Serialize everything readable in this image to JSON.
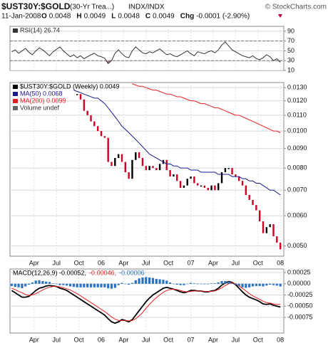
{
  "header": {
    "symbol": "$UST30Y:$GOLD",
    "name": "(30-Yr Trea...)",
    "exchange": "INDX/INDX",
    "credit": "© StockCharts.com",
    "date": "11-Jan-2008",
    "quote": [
      {
        "label": "O",
        "value": "0.0048"
      },
      {
        "label": "H",
        "value": "0.0049"
      },
      {
        "label": "L",
        "value": "0.0048"
      },
      {
        "label": "C",
        "value": "0.0049"
      },
      {
        "label": "Chg",
        "value": "-0.0001 (-2.90%)"
      }
    ]
  },
  "chart_data": [
    {
      "type": "line",
      "xlim": [
        -0.5,
        79
      ],
      "xticks": [
        6.5,
        13,
        19.5,
        26,
        32.5,
        39,
        45.5,
        52,
        58.5,
        65,
        71.5,
        78
      ],
      "ylim": [
        10,
        100
      ],
      "yticks": [
        90,
        70,
        50,
        30,
        10
      ],
      "ref_lines": [
        70,
        30
      ],
      "grid": true,
      "series": [
        {
          "name": "RSI(14) 26.74",
          "color": "#333333",
          "kind": "line",
          "shade_below": 30,
          "shade_color": "#a87c7c",
          "values": [
            48,
            52,
            45,
            50,
            55,
            47,
            42,
            50,
            56,
            52,
            46,
            40,
            48,
            53,
            58,
            50,
            44,
            38,
            42,
            36,
            40,
            34,
            38,
            42,
            45,
            40,
            38,
            35,
            24,
            30,
            45,
            52,
            44,
            38,
            36,
            50,
            58,
            52,
            46,
            44,
            48,
            46,
            50,
            54,
            48,
            42,
            44,
            40,
            38,
            42,
            46,
            50,
            44,
            40,
            48,
            46,
            44,
            48,
            50,
            46,
            52,
            62,
            68,
            60,
            52,
            48,
            44,
            40,
            38,
            36,
            40,
            34,
            32,
            36,
            42,
            38,
            30,
            34,
            26.74
          ]
        }
      ]
    },
    {
      "type": "line",
      "log": true,
      "grid": true,
      "xlim": [
        -0.5,
        79
      ],
      "xticks": [
        {
          "value": 6.5,
          "label": "Apr"
        },
        {
          "value": 13,
          "label": "Jul"
        },
        {
          "value": 19.5,
          "label": "Oct"
        },
        {
          "value": 26,
          "label": "06"
        },
        {
          "value": 32.5,
          "label": "Apr"
        },
        {
          "value": 39,
          "label": "Jul"
        },
        {
          "value": 45.5,
          "label": "Oct"
        },
        {
          "value": 52,
          "label": "07"
        },
        {
          "value": 58.5,
          "label": "Apr"
        },
        {
          "value": 65,
          "label": "Jul"
        },
        {
          "value": 71.5,
          "label": "Oct"
        },
        {
          "value": 78,
          "label": "08"
        }
      ],
      "ylim": [
        0.0047,
        0.0134
      ],
      "yticks": [
        {
          "value": 0.013,
          "label": "0.0130"
        },
        {
          "value": 0.012,
          "label": "0.0120"
        },
        {
          "value": 0.011,
          "label": "0.0110"
        },
        {
          "value": 0.01,
          "label": "0.0100"
        },
        {
          "value": 0.009,
          "label": "0.0090"
        },
        {
          "value": 0.008,
          "label": "0.0080"
        },
        {
          "value": 0.007,
          "label": "0.0070"
        },
        {
          "value": 0.006,
          "label": "0.0060"
        },
        {
          "value": 0.005,
          "label": "0.0050"
        }
      ],
      "series": [
        {
          "name": "$UST30Y:$GOLD (Weekly) 0.0049",
          "color": "#000000",
          "down_color": "#cc0022",
          "kind": "bars",
          "values": [
            null,
            null,
            null,
            null,
            null,
            null,
            null,
            null,
            null,
            null,
            null,
            null,
            null,
            null,
            null,
            null,
            null,
            null,
            null,
            0.0125,
            0.0121,
            0.0113,
            0.011,
            0.0106,
            0.0103,
            0.01,
            0.0097,
            0.0096,
            0.0083,
            0.0081,
            0.0085,
            0.0087,
            0.0083,
            0.0078,
            0.0075,
            0.0084,
            0.0088,
            0.0085,
            0.0081,
            0.0079,
            0.0081,
            0.008,
            0.0079,
            0.0082,
            0.0084,
            0.0079,
            0.0076,
            0.0077,
            0.0074,
            0.0071,
            0.0072,
            0.0075,
            0.0076,
            0.0073,
            0.0072,
            0.0072,
            0.0071,
            0.007,
            0.0072,
            0.007,
            0.0073,
            0.0078,
            0.008,
            0.008,
            0.0077,
            0.0076,
            0.0074,
            0.0072,
            0.0068,
            0.0066,
            0.0064,
            0.0062,
            0.0058,
            0.0054,
            0.0056,
            0.0057,
            0.0053,
            0.0051,
            0.0049
          ]
        },
        {
          "name": "MA(50) 0.0068",
          "color": "#1a1a8c",
          "kind": "line",
          "values": [
            null,
            null,
            null,
            null,
            null,
            null,
            null,
            null,
            null,
            null,
            null,
            null,
            null,
            null,
            null,
            null,
            null,
            null,
            0.0128,
            0.0127,
            0.0126,
            0.0125,
            0.0124,
            0.0123,
            0.0122,
            0.0122,
            0.012,
            0.0118,
            0.0115,
            0.0112,
            0.0109,
            0.0106,
            0.0103,
            0.0101,
            0.0099,
            0.0097,
            0.0095,
            0.0093,
            0.0091,
            0.0089,
            0.0087,
            0.0086,
            0.0085,
            0.0084,
            0.0083,
            0.0082,
            0.0082,
            0.0081,
            0.0081,
            0.008,
            0.008,
            0.008,
            0.0079,
            0.0079,
            0.0079,
            0.0078,
            0.0078,
            0.0078,
            0.0078,
            0.0078,
            0.0077,
            0.0077,
            0.0077,
            0.0077,
            0.0076,
            0.0076,
            0.0076,
            0.0075,
            0.0075,
            0.0074,
            0.0074,
            0.0073,
            0.0073,
            0.0072,
            0.0071,
            0.007,
            0.007,
            0.0069,
            0.0068
          ]
        },
        {
          "name": "MA(200) 0.0099",
          "color": "#e02020",
          "kind": "line",
          "values": [
            null,
            null,
            null,
            null,
            null,
            null,
            null,
            null,
            null,
            null,
            null,
            null,
            null,
            null,
            null,
            null,
            null,
            null,
            null,
            null,
            null,
            null,
            null,
            null,
            null,
            null,
            null,
            null,
            null,
            null,
            null,
            null,
            null,
            null,
            null,
            0.0133,
            0.0132,
            0.0131,
            0.0131,
            0.013,
            0.0129,
            0.0128,
            0.0128,
            0.0127,
            0.0126,
            0.0125,
            0.0125,
            0.0124,
            0.0123,
            0.0123,
            0.0122,
            0.0121,
            0.012,
            0.012,
            0.0119,
            0.0118,
            0.0118,
            0.0117,
            0.0116,
            0.0115,
            0.0115,
            0.0114,
            0.0113,
            0.0112,
            0.0111,
            0.011,
            0.011,
            0.0109,
            0.0108,
            0.0107,
            0.0106,
            0.0105,
            0.0104,
            0.0103,
            0.0102,
            0.0101,
            0.01,
            0.01,
            0.0099
          ]
        }
      ],
      "annotations": [
        "Volume undef"
      ]
    },
    {
      "type": "line",
      "grid": true,
      "legend_inline": true,
      "xlim": [
        -0.5,
        79
      ],
      "xticks": [
        {
          "value": 6.5,
          "label": "Apr"
        },
        {
          "value": 13,
          "label": "Jul"
        },
        {
          "value": 19.5,
          "label": "Oct"
        },
        {
          "value": 26,
          "label": "06"
        },
        {
          "value": 32.5,
          "label": "Apr"
        },
        {
          "value": 39,
          "label": "Jul"
        },
        {
          "value": 45.5,
          "label": "Oct"
        },
        {
          "value": 52,
          "label": "07"
        },
        {
          "value": 58.5,
          "label": "Apr"
        },
        {
          "value": 65,
          "label": "Jul"
        },
        {
          "value": 71.5,
          "label": "Oct"
        },
        {
          "value": 78,
          "label": "08"
        }
      ],
      "ylim": [
        -0.0011,
        0.00033
      ],
      "yticks": [
        {
          "value": 0.00025,
          "label": "0.00025"
        },
        {
          "value": 0,
          "label": "0.00000"
        },
        {
          "value": -0.00025,
          "label": "-0.00025"
        },
        {
          "value": -0.0005,
          "label": "-0.00050"
        },
        {
          "value": -0.00075,
          "label": "-0.00075"
        }
      ],
      "series": [
        {
          "name": "MACD(12,26,9) -0.00052,",
          "color": "#000000",
          "kind": "line",
          "width": 1.8,
          "values": [
            -0.00015,
            -0.0002,
            -0.00025,
            -0.0003,
            -0.0003,
            -0.00028,
            -0.00022,
            -0.00015,
            -0.0001,
            -8e-05,
            -5e-05,
            -4e-05,
            -5e-05,
            -6e-05,
            -0.0001,
            -0.00012,
            -0.00015,
            -0.0002,
            -0.00025,
            -0.0003,
            -0.00035,
            -0.0004,
            -0.00045,
            -0.0005,
            -0.00055,
            -0.0006,
            -0.00065,
            -0.0007,
            -0.00078,
            -0.00085,
            -0.00088,
            -0.00085,
            -0.0008,
            -0.00082,
            -0.00085,
            -0.0008,
            -0.0007,
            -0.0006,
            -0.0005,
            -0.0004,
            -0.00032,
            -0.00025,
            -0.0002,
            -0.00015,
            -0.0001,
            -8e-05,
            -0.0001,
            -0.00012,
            -0.00015,
            -0.00018,
            -0.0002,
            -0.00018,
            -0.00015,
            -0.00015,
            -0.00016,
            -0.00016,
            -0.00018,
            -0.00018,
            -0.00016,
            -0.00015,
            -0.0001,
            -3e-05,
            2e-05,
            5e-05,
            3e-05,
            -2e-05,
            -0.0001,
            -0.00018,
            -0.00025,
            -0.0003,
            -0.00033,
            -0.00036,
            -0.0004,
            -0.00045,
            -0.00046,
            -0.00045,
            -0.00048,
            -0.0005,
            -0.00052
          ]
        },
        {
          "name": "-0.00046,",
          "color": "#e02020",
          "kind": "line",
          "width": 1,
          "values": [
            -0.0001,
            -0.00013,
            -0.00017,
            -0.0002,
            -0.00024,
            -0.00026,
            -0.00025,
            -0.00022,
            -0.00018,
            -0.00014,
            -0.0001,
            -8e-05,
            -6e-05,
            -6e-05,
            -7e-05,
            -9e-05,
            -0.00011,
            -0.00014,
            -0.00018,
            -0.00022,
            -0.00027,
            -0.00032,
            -0.00037,
            -0.00042,
            -0.00047,
            -0.00052,
            -0.00057,
            -0.00062,
            -0.00068,
            -0.00074,
            -0.00079,
            -0.00082,
            -0.00082,
            -0.00082,
            -0.00083,
            -0.00082,
            -0.00078,
            -0.00072,
            -0.00064,
            -0.00055,
            -0.00046,
            -0.00038,
            -0.00031,
            -0.00025,
            -0.00019,
            -0.00015,
            -0.00013,
            -0.00012,
            -0.00013,
            -0.00015,
            -0.00017,
            -0.00018,
            -0.00017,
            -0.00016,
            -0.00016,
            -0.00016,
            -0.00017,
            -0.00017,
            -0.00017,
            -0.00016,
            -0.00013,
            -9e-05,
            -4e-05,
            0,
            2e-05,
            0,
            -5e-05,
            -0.0001,
            -0.00016,
            -0.00022,
            -0.00027,
            -0.00031,
            -0.00035,
            -0.00039,
            -0.00042,
            -0.00043,
            -0.00045,
            -0.00046,
            -0.00046
          ]
        },
        {
          "name": "-0.00006",
          "color": "#2a73c4",
          "kind": "histogram",
          "values": [
            -5e-05,
            -7e-05,
            -8e-05,
            -0.0001,
            -6e-05,
            -2e-05,
            3e-05,
            7e-05,
            8e-05,
            6e-05,
            5e-05,
            4e-05,
            1e-05,
            0,
            -3e-05,
            -3e-05,
            -4e-05,
            -6e-05,
            -7e-05,
            -8e-05,
            -8e-05,
            -8e-05,
            -8e-05,
            -8e-05,
            -8e-05,
            -8e-05,
            -8e-05,
            -8e-05,
            -0.0001,
            -0.00011,
            -9e-05,
            -3e-05,
            2e-05,
            0,
            -2e-05,
            2e-05,
            8e-05,
            0.00012,
            0.00014,
            0.00015,
            0.00014,
            0.00013,
            0.00011,
            0.0001,
            9e-05,
            7e-05,
            3e-05,
            0,
            -2e-05,
            -3e-05,
            -3e-05,
            0,
            2e-05,
            1e-05,
            0,
            0,
            -1e-05,
            -1e-05,
            1e-05,
            1e-05,
            3e-05,
            6e-05,
            6e-05,
            5e-05,
            1e-05,
            -2e-05,
            -5e-05,
            -8e-05,
            -9e-05,
            -8e-05,
            -6e-05,
            -5e-05,
            -5e-05,
            -6e-05,
            -4e-05,
            -2e-05,
            -3e-05,
            -4e-05,
            -6e-05
          ]
        }
      ]
    }
  ]
}
